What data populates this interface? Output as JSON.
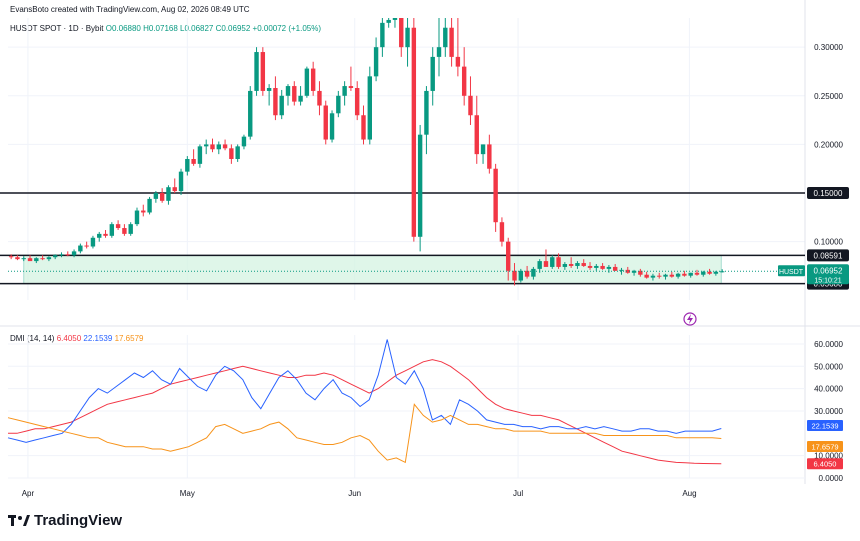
{
  "header": {
    "credit": "EvansBoto created with TradingView.com, Aug 02, 2026 08:49 UTC"
  },
  "legend": {
    "symbol": "HUSDT SPOT · 1D · Bybit",
    "ohlc": "O0.06880 H0.07168 L0.06827 C0.06952 +0.00072 (+1.05%)"
  },
  "indicator": {
    "name": "DMI (14, 14)",
    "adx": "6.4050",
    "plus_di": "22.1539",
    "minus_di": "17.6579"
  },
  "brand": "TradingView",
  "colors": {
    "up": "#089981",
    "down": "#f23645",
    "adx": "#f23645",
    "plus": "#2962ff",
    "minus": "#f7931a"
  },
  "chart_data": [
    {
      "type": "candlestick",
      "symbol": "HUSDT",
      "x_ticks": [
        "Apr",
        "May",
        "Jun",
        "Jul",
        "Aug"
      ],
      "y_ticks": [
        "0.10000",
        "0.15000",
        "0.20000",
        "0.25000",
        "0.30000"
      ],
      "ylim": [
        0.04,
        0.33
      ],
      "price_tag": {
        "label": "HUSDT",
        "value": "0.06952",
        "countdown": "15:10:21"
      },
      "levels": [
        {
          "value": 0.15,
          "label": "0.15000"
        },
        {
          "value": 0.08591,
          "label": "0.08591"
        },
        {
          "value": 0.0568,
          "label": "0.05680"
        }
      ],
      "range_box": {
        "top": 0.08591,
        "bottom": 0.0568
      },
      "ohlc": [
        [
          0.085,
          0.087,
          0.082,
          0.084
        ],
        [
          0.084,
          0.086,
          0.081,
          0.082
        ],
        [
          0.082,
          0.085,
          0.08,
          0.083
        ],
        [
          0.083,
          0.086,
          0.081,
          0.08
        ],
        [
          0.08,
          0.084,
          0.078,
          0.083
        ],
        [
          0.083,
          0.086,
          0.081,
          0.082
        ],
        [
          0.082,
          0.085,
          0.08,
          0.084
        ],
        [
          0.084,
          0.087,
          0.082,
          0.086
        ],
        [
          0.086,
          0.089,
          0.084,
          0.087
        ],
        [
          0.087,
          0.09,
          0.085,
          0.086
        ],
        [
          0.086,
          0.092,
          0.084,
          0.09
        ],
        [
          0.09,
          0.098,
          0.088,
          0.096
        ],
        [
          0.096,
          0.1,
          0.093,
          0.095
        ],
        [
          0.095,
          0.106,
          0.093,
          0.104
        ],
        [
          0.104,
          0.11,
          0.1,
          0.108
        ],
        [
          0.108,
          0.112,
          0.104,
          0.106
        ],
        [
          0.106,
          0.12,
          0.104,
          0.118
        ],
        [
          0.118,
          0.122,
          0.112,
          0.114
        ],
        [
          0.114,
          0.118,
          0.106,
          0.108
        ],
        [
          0.108,
          0.12,
          0.106,
          0.118
        ],
        [
          0.118,
          0.135,
          0.116,
          0.132
        ],
        [
          0.132,
          0.138,
          0.126,
          0.13
        ],
        [
          0.13,
          0.146,
          0.128,
          0.144
        ],
        [
          0.144,
          0.152,
          0.14,
          0.15
        ],
        [
          0.15,
          0.155,
          0.14,
          0.142
        ],
        [
          0.142,
          0.158,
          0.138,
          0.156
        ],
        [
          0.156,
          0.165,
          0.15,
          0.152
        ],
        [
          0.152,
          0.175,
          0.148,
          0.172
        ],
        [
          0.172,
          0.188,
          0.168,
          0.185
        ],
        [
          0.185,
          0.195,
          0.178,
          0.18
        ],
        [
          0.18,
          0.2,
          0.176,
          0.198
        ],
        [
          0.198,
          0.205,
          0.19,
          0.2
        ],
        [
          0.2,
          0.206,
          0.192,
          0.195
        ],
        [
          0.195,
          0.203,
          0.19,
          0.2
        ],
        [
          0.2,
          0.205,
          0.194,
          0.196
        ],
        [
          0.196,
          0.2,
          0.18,
          0.185
        ],
        [
          0.185,
          0.2,
          0.182,
          0.198
        ],
        [
          0.198,
          0.21,
          0.195,
          0.208
        ],
        [
          0.208,
          0.26,
          0.205,
          0.255
        ],
        [
          0.255,
          0.3,
          0.25,
          0.295
        ],
        [
          0.295,
          0.3,
          0.25,
          0.255
        ],
        [
          0.255,
          0.262,
          0.24,
          0.258
        ],
        [
          0.258,
          0.27,
          0.225,
          0.23
        ],
        [
          0.23,
          0.256,
          0.226,
          0.25
        ],
        [
          0.25,
          0.262,
          0.24,
          0.26
        ],
        [
          0.26,
          0.265,
          0.24,
          0.244
        ],
        [
          0.244,
          0.26,
          0.24,
          0.25
        ],
        [
          0.25,
          0.28,
          0.248,
          0.278
        ],
        [
          0.278,
          0.285,
          0.25,
          0.255
        ],
        [
          0.255,
          0.265,
          0.23,
          0.24
        ],
        [
          0.24,
          0.245,
          0.2,
          0.205
        ],
        [
          0.205,
          0.235,
          0.202,
          0.232
        ],
        [
          0.232,
          0.255,
          0.228,
          0.25
        ],
        [
          0.25,
          0.265,
          0.24,
          0.26
        ],
        [
          0.26,
          0.28,
          0.255,
          0.258
        ],
        [
          0.258,
          0.265,
          0.225,
          0.23
        ],
        [
          0.23,
          0.24,
          0.2,
          0.205
        ],
        [
          0.205,
          0.28,
          0.2,
          0.27
        ],
        [
          0.27,
          0.31,
          0.265,
          0.3
        ],
        [
          0.3,
          0.33,
          0.29,
          0.325
        ],
        [
          0.325,
          0.33,
          0.32,
          0.328
        ],
        [
          0.328,
          0.33,
          0.32,
          0.33
        ],
        [
          0.33,
          0.33,
          0.29,
          0.3
        ],
        [
          0.3,
          0.33,
          0.28,
          0.32
        ],
        [
          0.32,
          0.33,
          0.1,
          0.105
        ],
        [
          0.105,
          0.22,
          0.09,
          0.21
        ],
        [
          0.21,
          0.26,
          0.19,
          0.255
        ],
        [
          0.255,
          0.3,
          0.24,
          0.29
        ],
        [
          0.29,
          0.33,
          0.27,
          0.3
        ],
        [
          0.3,
          0.33,
          0.29,
          0.32
        ],
        [
          0.32,
          0.33,
          0.28,
          0.29
        ],
        [
          0.29,
          0.33,
          0.27,
          0.28
        ],
        [
          0.28,
          0.3,
          0.24,
          0.25
        ],
        [
          0.25,
          0.27,
          0.22,
          0.23
        ],
        [
          0.23,
          0.25,
          0.18,
          0.19
        ],
        [
          0.19,
          0.2,
          0.18,
          0.2
        ],
        [
          0.2,
          0.21,
          0.17,
          0.175
        ],
        [
          0.175,
          0.18,
          0.11,
          0.12
        ],
        [
          0.12,
          0.125,
          0.095,
          0.1
        ],
        [
          0.1,
          0.104,
          0.06,
          0.07
        ],
        [
          0.07,
          0.078,
          0.055,
          0.06
        ],
        [
          0.06,
          0.072,
          0.058,
          0.07
        ],
        [
          0.07,
          0.075,
          0.062,
          0.064
        ],
        [
          0.064,
          0.074,
          0.061,
          0.072
        ],
        [
          0.072,
          0.082,
          0.068,
          0.08
        ],
        [
          0.08,
          0.092,
          0.075,
          0.074
        ],
        [
          0.074,
          0.086,
          0.072,
          0.084
        ],
        [
          0.084,
          0.088,
          0.072,
          0.074
        ],
        [
          0.074,
          0.079,
          0.071,
          0.077
        ],
        [
          0.077,
          0.084,
          0.073,
          0.075
        ],
        [
          0.075,
          0.08,
          0.072,
          0.078
        ],
        [
          0.078,
          0.082,
          0.074,
          0.075
        ],
        [
          0.075,
          0.079,
          0.071,
          0.073
        ],
        [
          0.073,
          0.077,
          0.07,
          0.075
        ],
        [
          0.075,
          0.078,
          0.071,
          0.072
        ],
        [
          0.072,
          0.076,
          0.068,
          0.074
        ],
        [
          0.074,
          0.077,
          0.07,
          0.07
        ],
        [
          0.07,
          0.073,
          0.066,
          0.071
        ],
        [
          0.071,
          0.074,
          0.067,
          0.068
        ],
        [
          0.068,
          0.071,
          0.065,
          0.07
        ],
        [
          0.07,
          0.072,
          0.064,
          0.066
        ],
        [
          0.066,
          0.069,
          0.062,
          0.063
        ],
        [
          0.063,
          0.067,
          0.06,
          0.065
        ],
        [
          0.065,
          0.068,
          0.062,
          0.064
        ],
        [
          0.064,
          0.067,
          0.061,
          0.066
        ],
        [
          0.066,
          0.069,
          0.063,
          0.064
        ],
        [
          0.064,
          0.068,
          0.062,
          0.067
        ],
        [
          0.067,
          0.07,
          0.064,
          0.065
        ],
        [
          0.065,
          0.068,
          0.063,
          0.068
        ],
        [
          0.068,
          0.071,
          0.065,
          0.066
        ],
        [
          0.066,
          0.07,
          0.064,
          0.069
        ],
        [
          0.069,
          0.072,
          0.066,
          0.067
        ],
        [
          0.067,
          0.07,
          0.065,
          0.069
        ],
        [
          0.0688,
          0.07168,
          0.06827,
          0.06952
        ]
      ],
      "extended_to": 0.9
    },
    {
      "type": "line",
      "title": "DMI (14, 14)",
      "y_ticks": [
        "0.0000",
        "10.0000",
        "30.0000",
        "40.0000",
        "50.0000",
        "60.0000"
      ],
      "ylim": [
        0,
        64
      ],
      "series": [
        {
          "name": "ADX",
          "color": "#f23645",
          "values": [
            20,
            20,
            21,
            22,
            22,
            23,
            24,
            25,
            27,
            29,
            31,
            33,
            34,
            35,
            36,
            37,
            38,
            40,
            42,
            43,
            44,
            45,
            46,
            47,
            48,
            49,
            50,
            49,
            48,
            47,
            46,
            45,
            45,
            46,
            46,
            47,
            46,
            44,
            42,
            40,
            38,
            40,
            43,
            46,
            48,
            50,
            52,
            53,
            52,
            50,
            47,
            44,
            40,
            36,
            33,
            31,
            30,
            29,
            28,
            28,
            27,
            26,
            24,
            22,
            20,
            18,
            16,
            14,
            12,
            11,
            10,
            9,
            8,
            7.5,
            7,
            6.8,
            6.6,
            6.5,
            6.45,
            6.405
          ]
        },
        {
          "name": "+DI",
          "color": "#2962ff",
          "values": [
            18,
            17,
            16,
            17,
            18,
            19,
            20,
            24,
            30,
            36,
            40,
            38,
            41,
            44,
            47,
            45,
            48,
            44,
            42,
            49,
            45,
            41,
            39,
            46,
            50,
            48,
            44,
            36,
            31,
            38,
            45,
            48,
            44,
            38,
            35,
            40,
            44,
            38,
            36,
            32,
            35,
            46,
            62,
            45,
            42,
            48,
            40,
            26,
            28,
            24,
            35,
            33,
            30,
            26,
            25,
            24,
            24,
            23,
            23,
            22,
            23,
            23,
            22,
            22,
            23,
            22,
            23,
            22,
            21,
            21,
            22,
            22,
            21,
            21,
            20,
            21,
            21,
            21,
            21,
            22.1539
          ]
        },
        {
          "name": "-DI",
          "color": "#f7931a",
          "values": [
            27,
            26,
            25,
            24,
            23,
            22,
            21,
            20,
            19,
            18,
            18,
            16,
            15,
            14,
            14,
            14,
            13,
            13,
            12,
            13,
            14,
            16,
            18,
            23,
            24,
            22,
            20,
            21,
            22,
            24,
            25,
            22,
            18,
            17,
            16,
            15,
            15,
            16,
            18,
            19,
            17,
            12,
            8,
            9,
            7,
            33,
            28,
            25,
            26,
            28,
            26,
            24,
            24,
            23,
            22,
            22,
            21,
            21,
            21,
            21,
            20,
            20,
            20,
            20,
            20,
            20,
            19,
            19,
            19,
            19,
            19,
            19,
            19,
            19,
            18,
            18,
            18,
            18,
            18,
            17.6579
          ]
        }
      ]
    }
  ]
}
